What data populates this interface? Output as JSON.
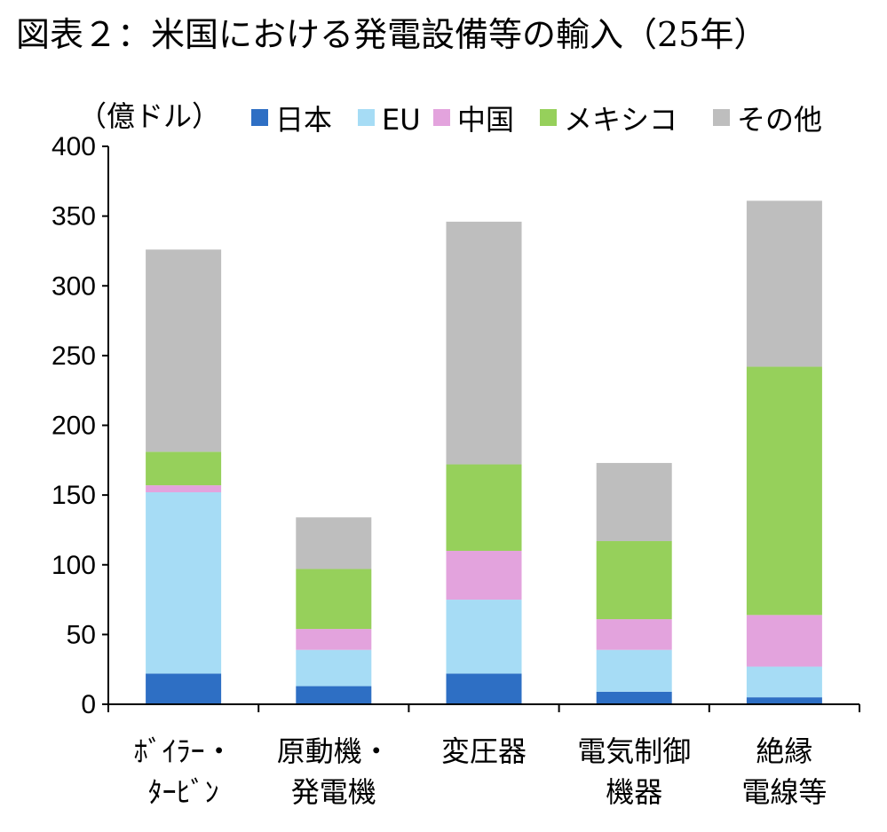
{
  "title": "図表２：米国における発電設備等の輸入（25年）",
  "chart_data": {
    "type": "bar",
    "stacked": true,
    "unit": "（億ドル）",
    "ylim": [
      0,
      400
    ],
    "yticks": [
      0,
      50,
      100,
      150,
      200,
      250,
      300,
      350,
      400
    ],
    "categories": [
      [
        "ﾎﾞｲﾗｰ・",
        "ﾀｰﾋﾞﾝ"
      ],
      [
        "原動機・",
        "発電機"
      ],
      [
        "変圧器"
      ],
      [
        "電気制御",
        "機器"
      ],
      [
        "絶縁",
        "電線等"
      ]
    ],
    "series": [
      {
        "name": "日本",
        "color": "#2E6FC4",
        "values": [
          22,
          13,
          22,
          9,
          5
        ]
      },
      {
        "name": "EU",
        "color": "#A6DCF5",
        "values": [
          130,
          26,
          53,
          30,
          22
        ]
      },
      {
        "name": "中国",
        "color": "#E3A3DD",
        "values": [
          5,
          15,
          35,
          22,
          37
        ]
      },
      {
        "name": "メキシコ",
        "color": "#96D05B",
        "values": [
          24,
          43,
          62,
          56,
          178
        ]
      },
      {
        "name": "その他",
        "color": "#BEBEBE",
        "values": [
          145,
          37,
          174,
          56,
          119
        ]
      }
    ],
    "legend_position": "top"
  }
}
